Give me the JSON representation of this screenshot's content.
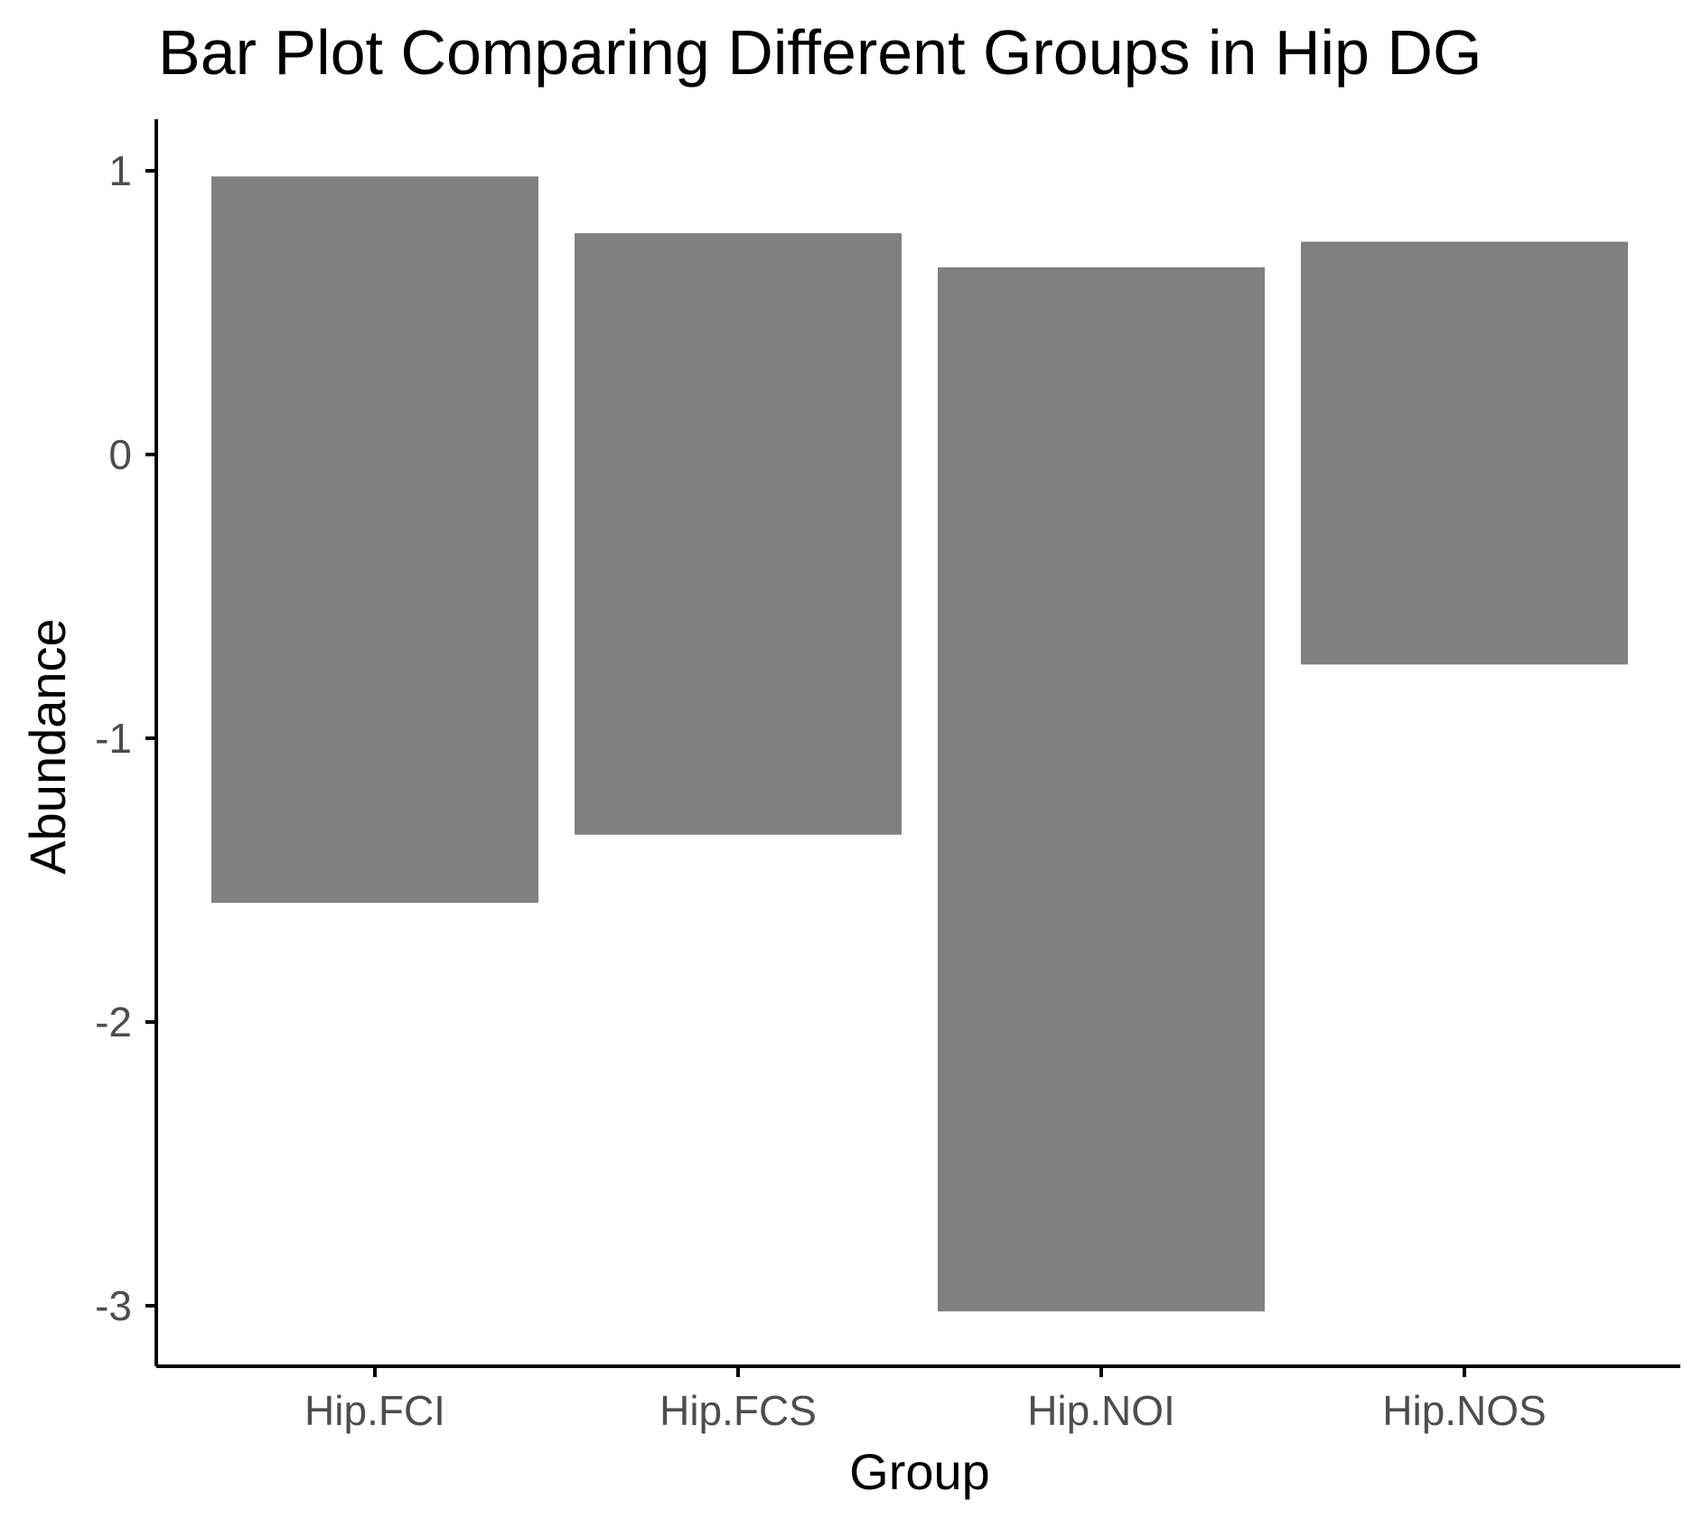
{
  "chart_data": {
    "type": "bar",
    "title": "Bar Plot Comparing Different Groups in Hip DG",
    "xlabel": "Group",
    "ylabel": "Abundance",
    "categories": [
      "Hip.FCI",
      "Hip.FCS",
      "Hip.NOI",
      "Hip.NOS"
    ],
    "ranges": [
      {
        "category": "Hip.FCI",
        "low": -1.58,
        "high": 0.98
      },
      {
        "category": "Hip.FCS",
        "low": -1.34,
        "high": 0.78
      },
      {
        "category": "Hip.NOI",
        "low": -3.02,
        "high": 0.66
      },
      {
        "category": "Hip.NOS",
        "low": -0.74,
        "high": 0.75
      }
    ],
    "yticks": [
      -3,
      -2,
      -1,
      0,
      1
    ],
    "ylim": [
      -3.2,
      1.18
    ],
    "bar_color": "#808080",
    "grid": false,
    "legend": "none"
  }
}
